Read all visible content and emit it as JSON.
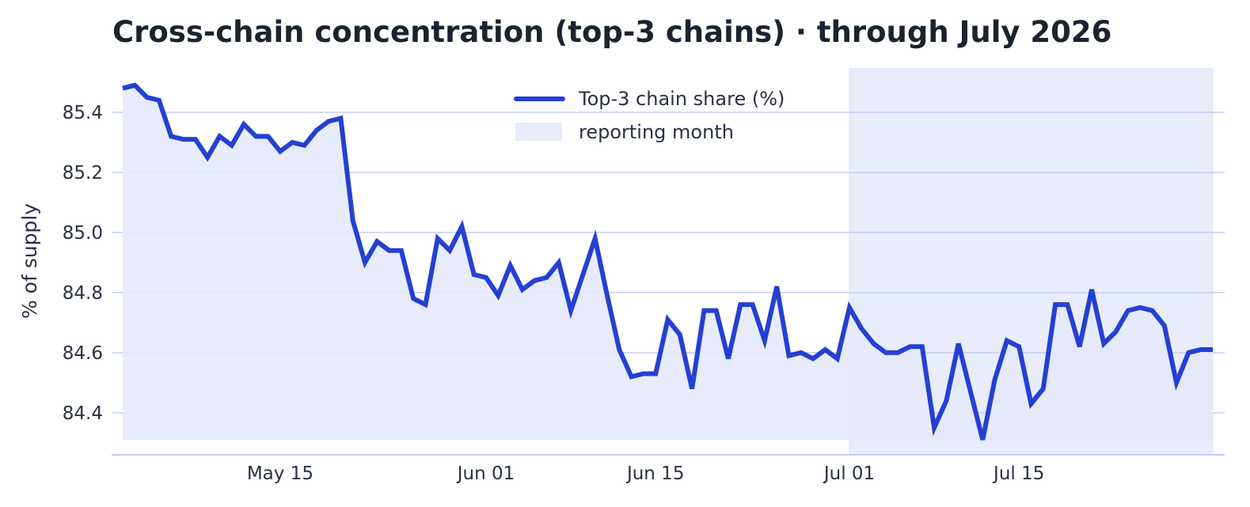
{
  "chart_data": {
    "type": "line",
    "title": "Cross-chain concentration (top-3 chains) · through July 2026",
    "xlabel": "",
    "ylabel": "% of supply",
    "ylim": [
      84.26,
      85.55
    ],
    "xlim": [
      "2026-05-02",
      "2026-07-31"
    ],
    "yticks": [
      84.4,
      84.6,
      84.8,
      85.0,
      85.2,
      85.4
    ],
    "ytick_labels": [
      "84.4",
      "84.6",
      "84.8",
      "85.0",
      "85.2",
      "85.4"
    ],
    "xticks": [
      "2026-05-15",
      "2026-06-01",
      "2026-06-15",
      "2026-07-01",
      "2026-07-15"
    ],
    "xtick_labels": [
      "May 15",
      "Jun 01",
      "Jun 15",
      "Jul 01",
      "Jul 15"
    ],
    "grid": "horizontal",
    "legend_position": "top-center",
    "colors": {
      "line": "#2440d4",
      "fill": "#e6e9fa",
      "band": "#e9ecfb",
      "grid": "#c6cdf2",
      "text": "#2a3140"
    },
    "highlight_band": {
      "name": "reporting month",
      "start": "2026-07-01",
      "end": "2026-07-31"
    },
    "series": [
      {
        "name": "Top-3 chain share (%)",
        "x_start": "2026-05-02",
        "values": [
          85.48,
          85.49,
          85.45,
          85.44,
          85.32,
          85.31,
          85.31,
          85.25,
          85.32,
          85.29,
          85.36,
          85.32,
          85.32,
          85.27,
          85.3,
          85.29,
          85.34,
          85.37,
          85.38,
          85.04,
          84.9,
          84.97,
          84.94,
          84.94,
          84.78,
          84.76,
          84.98,
          84.94,
          85.02,
          84.86,
          84.85,
          84.79,
          84.89,
          84.81,
          84.84,
          84.85,
          84.9,
          84.74,
          84.86,
          84.98,
          84.79,
          84.61,
          84.52,
          84.53,
          84.53,
          84.71,
          84.66,
          84.48,
          84.74,
          84.74,
          84.58,
          84.76,
          84.76,
          84.64,
          84.82,
          84.59,
          84.6,
          84.58,
          84.61,
          84.58,
          84.75,
          84.68,
          84.63,
          84.6,
          84.6,
          84.62,
          84.62,
          84.35,
          84.44,
          84.63,
          84.47,
          84.31,
          84.51,
          84.64,
          84.62,
          84.43,
          84.48,
          84.76,
          84.76,
          84.62,
          84.81,
          84.63,
          84.67,
          84.74,
          84.75,
          84.74,
          84.69,
          84.5,
          84.6,
          84.61,
          84.61
        ]
      }
    ]
  }
}
